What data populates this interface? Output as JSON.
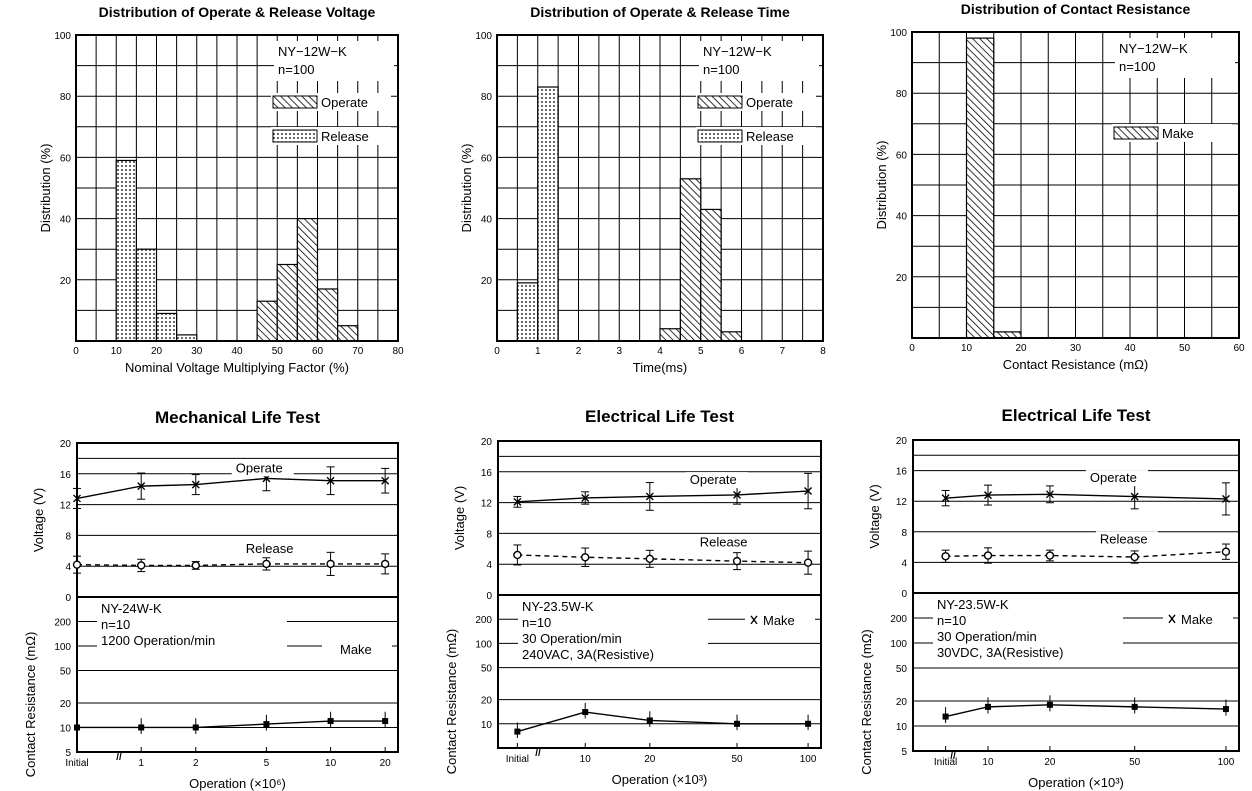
{
  "chart_data": [
    {
      "type": "bar",
      "title": "Distribution of Operate & Release Voltage",
      "xlabel": "Nominal Voltage Multiplying Factor (%)",
      "ylabel": "Distribution (%)",
      "xlim": [
        0,
        80
      ],
      "ylim": [
        0,
        100
      ],
      "xticks": [
        "0",
        "10",
        "20",
        "30",
        "40",
        "50",
        "60",
        "70",
        "80"
      ],
      "yticks": [
        "20",
        "40",
        "60",
        "80",
        "100"
      ],
      "bin_width": 5,
      "annotations": [
        "NY−12W−K",
        "n=100"
      ],
      "legend_position": "top-right",
      "series": [
        {
          "name": "Operate",
          "pattern": "hatch",
          "x": [
            45,
            50,
            55,
            60,
            65
          ],
          "values": [
            13,
            25,
            40,
            17,
            5
          ]
        },
        {
          "name": "Release",
          "pattern": "dots",
          "x": [
            10,
            15,
            20,
            25
          ],
          "values": [
            59,
            30,
            9,
            2
          ]
        }
      ]
    },
    {
      "type": "bar",
      "title": "Distribution of Operate & Release Time",
      "xlabel": "Time(ms)",
      "ylabel": "Distribution (%)",
      "xlim": [
        0,
        8
      ],
      "ylim": [
        0,
        100
      ],
      "xticks": [
        "0",
        "1",
        "2",
        "3",
        "4",
        "5",
        "6",
        "7",
        "8"
      ],
      "yticks": [
        "20",
        "40",
        "60",
        "80",
        "100"
      ],
      "bin_width": 0.5,
      "annotations": [
        "NY−12W−K",
        "n=100"
      ],
      "legend_position": "top-right",
      "series": [
        {
          "name": "Operate",
          "pattern": "hatch",
          "x": [
            4,
            4.5,
            5,
            5.5
          ],
          "values": [
            4,
            53,
            43,
            3
          ]
        },
        {
          "name": "Release",
          "pattern": "dots",
          "x": [
            0.5,
            1
          ],
          "values": [
            19,
            83
          ]
        }
      ]
    },
    {
      "type": "bar",
      "title": "Distribution of Contact Resistance",
      "xlabel": "Contact Resistance (mΩ)",
      "ylabel": "Distribution (%)",
      "xlim": [
        0,
        60
      ],
      "ylim": [
        0,
        100
      ],
      "xticks": [
        "0",
        "10",
        "20",
        "30",
        "40",
        "50",
        "60"
      ],
      "yticks": [
        "20",
        "40",
        "60",
        "80",
        "100"
      ],
      "bin_width": 5,
      "annotations": [
        "NY−12W−K",
        "n=100"
      ],
      "legend_position": "right",
      "series": [
        {
          "name": "Make",
          "pattern": "hatch",
          "x": [
            10,
            15
          ],
          "values": [
            98,
            2
          ]
        }
      ]
    },
    {
      "type": "line",
      "title": "Mechanical Life Test",
      "xlabel": "Operation (×10⁶)",
      "categories": [
        "Initial",
        "1",
        "2",
        "5",
        "10",
        "20"
      ],
      "voltage": {
        "ylabel": "Voltage (V)",
        "ylim": [
          0,
          20
        ],
        "yticks": [
          "0",
          "4",
          "8",
          "12",
          "16",
          "20"
        ],
        "series": [
          {
            "name": "Operate",
            "values": [
              12.8,
              14.4,
              14.6,
              15.4,
              15.1,
              15.1
            ],
            "err": [
              1.3,
              1.7,
              1.3,
              1.6,
              1.8,
              1.6
            ]
          },
          {
            "name": "Release",
            "values": [
              4.2,
              4.1,
              4.1,
              4.3,
              4.3,
              4.3
            ],
            "err": [
              1.1,
              0.8,
              0.5,
              0.8,
              1.5,
              1.3
            ]
          }
        ]
      },
      "resistance": {
        "ylabel": "Contact Resistance (mΩ)",
        "yticks": [
          "5",
          "10",
          "20",
          "50",
          "100",
          "200"
        ],
        "log": true,
        "series": [
          {
            "name": "Make",
            "values": [
              10,
              10,
              10,
              11,
              12,
              12
            ]
          }
        ]
      },
      "annotations": [
        "NY-24W-K",
        "n=10",
        "1200 Operation/min"
      ]
    },
    {
      "type": "line",
      "title": "Electrical Life Test",
      "xlabel": "Operation (×10³)",
      "categories": [
        "Initial",
        "10",
        "20",
        "50",
        "100"
      ],
      "voltage": {
        "ylabel": "Voltage (V)",
        "ylim": [
          0,
          20
        ],
        "yticks": [
          "0",
          "4",
          "8",
          "12",
          "16",
          "20"
        ],
        "series": [
          {
            "name": "Operate",
            "values": [
              12.1,
              12.6,
              12.8,
              13.0,
              13.5
            ],
            "err": [
              0.7,
              0.8,
              1.8,
              1.2,
              2.3
            ]
          },
          {
            "name": "Release",
            "values": [
              5.2,
              4.9,
              4.7,
              4.4,
              4.2
            ],
            "err": [
              1.3,
              1.2,
              1.1,
              1.1,
              1.5
            ]
          }
        ]
      },
      "resistance": {
        "ylabel": "Contact Resistance (mΩ)",
        "yticks": [
          "10",
          "20",
          "50",
          "100",
          "200"
        ],
        "log": true,
        "series": [
          {
            "name": "Make",
            "values": [
              8,
              14,
              11,
              10,
              10
            ]
          }
        ]
      },
      "annotations": [
        "NY-23.5W-K",
        "n=10",
        "30 Operation/min",
        "240VAC, 3A(Resistive)"
      ]
    },
    {
      "type": "line",
      "title": "Electrical Life Test",
      "xlabel": "Operation (×10³)",
      "categories": [
        "Initial",
        "10",
        "20",
        "50",
        "100"
      ],
      "voltage": {
        "ylabel": "Voltage (V)",
        "ylim": [
          0,
          20
        ],
        "yticks": [
          "0",
          "4",
          "8",
          "12",
          "16",
          "20"
        ],
        "series": [
          {
            "name": "Operate",
            "values": [
              12.4,
              12.8,
              12.9,
              12.6,
              12.3
            ],
            "err": [
              1.0,
              1.3,
              1.1,
              1.6,
              2.1
            ]
          },
          {
            "name": "Release",
            "values": [
              4.8,
              4.9,
              4.9,
              4.7,
              5.4
            ],
            "err": [
              0.8,
              1.0,
              0.7,
              0.8,
              1.0
            ]
          }
        ]
      },
      "resistance": {
        "ylabel": "Contact Resistance (mΩ)",
        "yticks": [
          "5",
          "10",
          "20",
          "50",
          "100",
          "200"
        ],
        "log": true,
        "series": [
          {
            "name": "Make",
            "values": [
              13,
              17,
              18,
              17,
              16
            ]
          }
        ]
      },
      "annotations": [
        "NY-23.5W-K",
        "n=10",
        "30 Operation/min",
        "30VDC, 3A(Resistive)"
      ]
    }
  ]
}
